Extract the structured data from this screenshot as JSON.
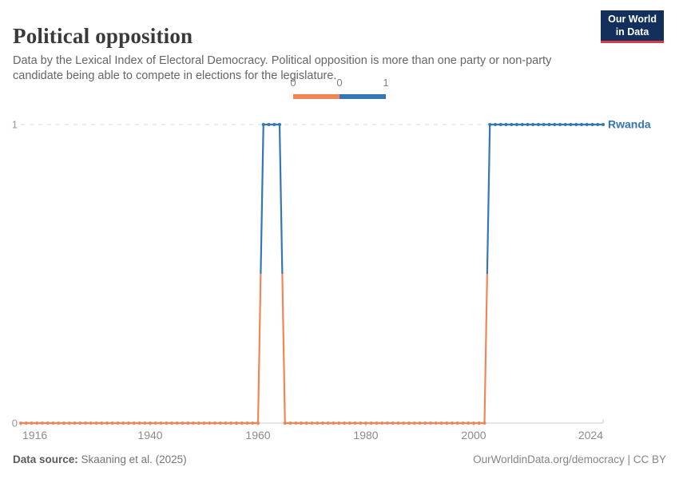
{
  "header": {
    "title": "Political opposition",
    "subtitle": "Data by the Lexical Index of Electoral Democracy. Political opposition is more than one party or non-party candidate being able to compete in elections for the legislature.",
    "logo": {
      "line1": "Our World",
      "line2": "in Data"
    }
  },
  "legend": {
    "labels": [
      "0",
      "0",
      "1"
    ],
    "bins": [
      {
        "value": 0,
        "color": "#F08658"
      },
      {
        "value": 1,
        "color": "#3577B3"
      }
    ]
  },
  "chart_data": {
    "type": "line",
    "entity": "Rwanda",
    "series_label": "Rwanda",
    "xlim": [
      1916,
      2024
    ],
    "ylim": [
      0,
      1
    ],
    "x_ticks": [
      1916,
      1940,
      1960,
      1980,
      2000,
      2024
    ],
    "y_ticks": [
      0,
      1
    ],
    "grid": true,
    "value_colors": {
      "0": "#F08658",
      "1": "#3577B3"
    },
    "segments": [
      {
        "start_year": 1916,
        "end_year": 1960,
        "value": 0
      },
      {
        "start_year": 1961,
        "end_year": 1964,
        "value": 1
      },
      {
        "start_year": 1965,
        "end_year": 2002,
        "value": 0
      },
      {
        "start_year": 2003,
        "end_year": 2024,
        "value": 1
      }
    ]
  },
  "footer": {
    "source_label": "Data source:",
    "source_value": " Skaaning et al. (2025)",
    "attribution": "OurWorldinData.org/democracy | CC BY"
  },
  "colors": {
    "accent_orange": "#F08658",
    "accent_blue": "#3577B3",
    "logo_navy": "#12305b",
    "logo_red": "#d73c4c",
    "grid_gray": "#d9d9d9",
    "axis_gray": "#cccccc",
    "tick_text": "#8b8b8b"
  }
}
